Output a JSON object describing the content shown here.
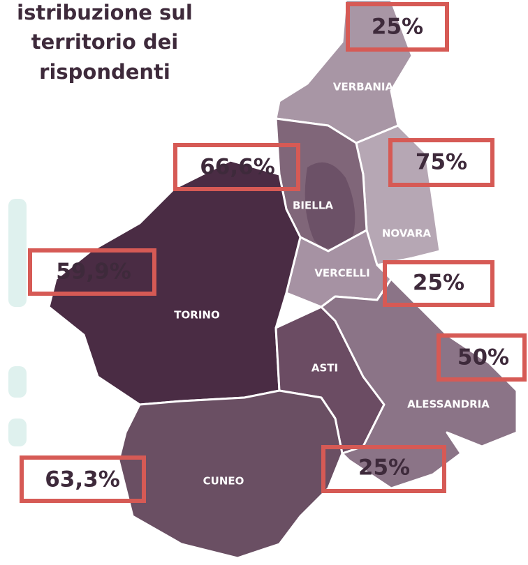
{
  "title": [
    "istribuzione sul",
    "territorio dei",
    "rispondenti"
  ],
  "regions": [
    {
      "name": "VERBANIA",
      "value_label": "25%"
    },
    {
      "name": "BIELLA",
      "value_label": "66,6%"
    },
    {
      "name": "NOVARA",
      "value_label": "75%"
    },
    {
      "name": "TORINO",
      "value_label": "59,9%"
    },
    {
      "name": "VERCELLI",
      "value_label": "25%"
    },
    {
      "name": "ALESSANDRIA",
      "value_label": "50%"
    },
    {
      "name": "ASTI",
      "value_label": "25%"
    },
    {
      "name": "CUNEO",
      "value_label": "63,3%"
    }
  ]
}
